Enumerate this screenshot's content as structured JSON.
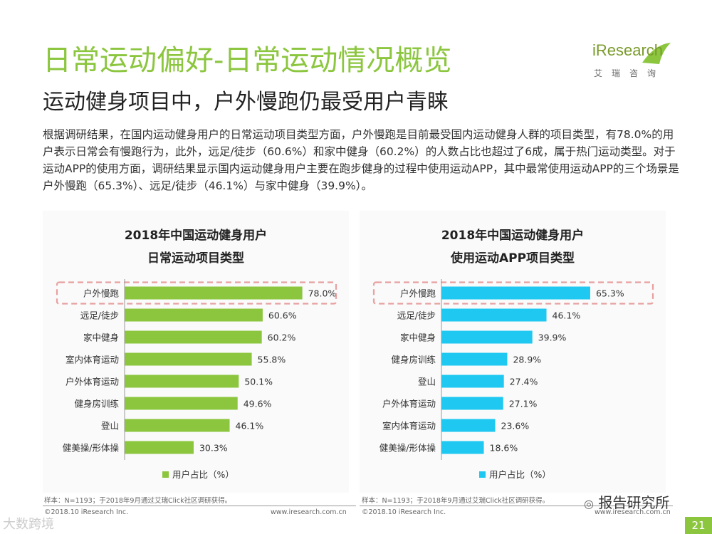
{
  "title": "日常运动偏好-日常运动情况概览",
  "subtitle": "运动健身项目中，户外慢跑仍最受用户青睐",
  "logo": {
    "brand": "iResearch",
    "sub": "艾瑞咨询"
  },
  "body_text": "根据调研结果，在国内运动健身用户的日常运动项目类型方面，户外慢跑是目前最受国内运动健身人群的项目类型，有78.0%的用户表示日常会有慢跑行为，此外，远足/徒步（60.6%）和家中健身（60.2%）的人数占比也超过了6成，属于热门运动类型。对于运动APP的使用方面，调研结果显示国内运动健身用户主要在跑步健身的过程中使用运动APP，其中最常使用运动APP的三个场景是户外慢跑（65.3%）、远足/徒步（46.1%）与家中健身（39.9%）。",
  "colors": {
    "green": "#8cc63f",
    "blue": "#1ec8f0",
    "highlight": "#e8a0a0"
  },
  "chart_data": [
    {
      "type": "bar",
      "orientation": "horizontal",
      "title": [
        "2018年中国运动健身用户",
        "日常运动项目类型"
      ],
      "categories": [
        "户外慢跑",
        "远足/徒步",
        "家中健身",
        "室内体育运动",
        "户外体育运动",
        "健身房训练",
        "登山",
        "健美操/形体操"
      ],
      "values": [
        78.0,
        60.6,
        60.2,
        55.8,
        50.1,
        49.6,
        46.1,
        30.3
      ],
      "labels": [
        "78.0%",
        "60.6%",
        "60.2%",
        "55.8%",
        "50.1%",
        "49.6%",
        "46.1%",
        "30.3%"
      ],
      "legend": "用户占比（%）",
      "color": "#8cc63f",
      "highlight_index": 0,
      "xlim": [
        0,
        100
      ]
    },
    {
      "type": "bar",
      "orientation": "horizontal",
      "title": [
        "2018年中国运动健身用户",
        "使用运动APP项目类型"
      ],
      "categories": [
        "户外慢跑",
        "远足/徒步",
        "家中健身",
        "健身房训练",
        "登山",
        "户外体育运动",
        "室内体育运动",
        "健美操/形体操"
      ],
      "values": [
        65.3,
        46.1,
        39.9,
        28.9,
        27.4,
        27.1,
        23.6,
        18.6
      ],
      "labels": [
        "65.3%",
        "46.1%",
        "39.9%",
        "28.9%",
        "27.4%",
        "27.1%",
        "23.6%",
        "18.6%"
      ],
      "legend": "用户占比（%）",
      "color": "#1ec8f0",
      "highlight_index": 0,
      "xlim": [
        0,
        100
      ]
    }
  ],
  "footer": {
    "left_source": "样本：N=1193；于2018年9月通过艾瑞Click社区调研获得。",
    "left_copyright": "©2018.10 iResearch Inc.",
    "left_url": "www.iresearch.com.cn",
    "right_source": "样本：N=1193；于2018年9月通过艾瑞Click社区调研获得。",
    "right_copyright": "©2018.10 iResearch Inc.",
    "right_url": "www.iresearch.com.cn",
    "watermark": "报告研究所",
    "corner_watermark": "大数跨境",
    "page_number": "21"
  }
}
